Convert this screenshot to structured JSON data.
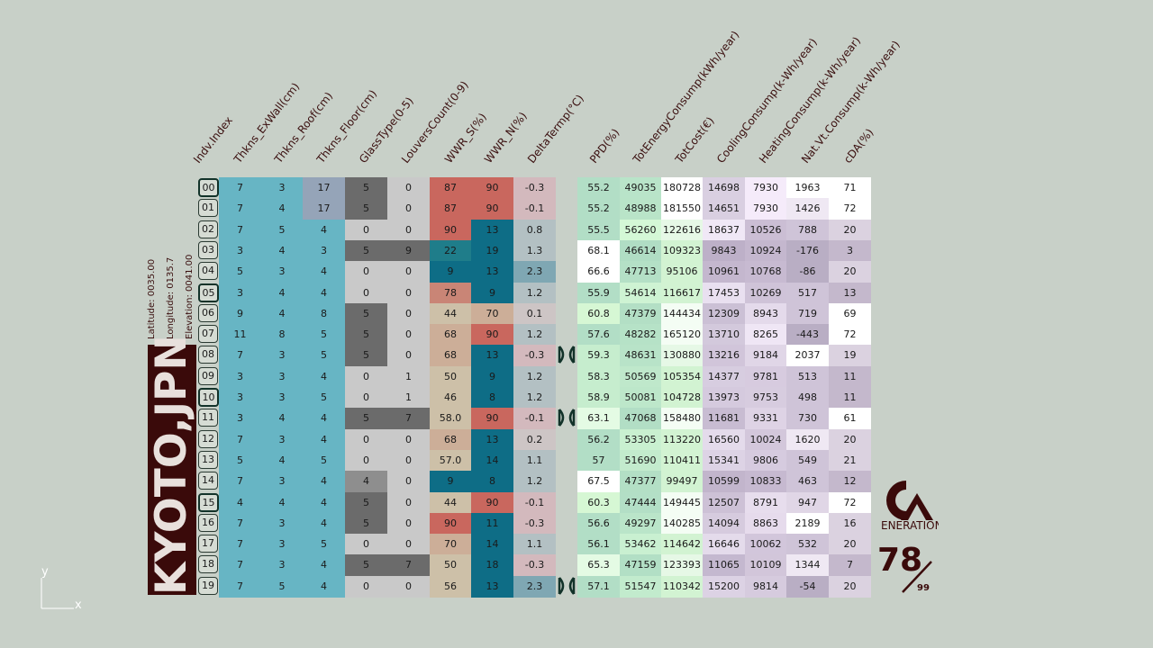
{
  "headers": [
    "Indv.Index",
    "Thkns_ExWall(cm)",
    "Thkns_Roof(cm)",
    "Thkns_Floor(cm)",
    "GlassType(0-5)",
    "LouversCount(0-9)",
    "WWR_S(%)",
    "WWR_N(%)",
    "DeltaTermp(°C)",
    "PPD(%)",
    "TotEnergyConsump(kWh/year)",
    "TotCost(€)",
    "CoolingConsump(k-Wh/year)",
    "HeatingConsump(k-Wh/year)",
    "Nat.Vt.Consump(k-Wh/year)",
    "cDA(%)"
  ],
  "rows": [
    [
      "00",
      "7",
      "3",
      "17",
      "5",
      "0",
      "87",
      "90",
      "-0.3",
      "55.2",
      "49035",
      "180728",
      "14698",
      "7930",
      "1963",
      "71"
    ],
    [
      "01",
      "7",
      "4",
      "17",
      "5",
      "0",
      "87",
      "90",
      "-0.1",
      "55.2",
      "48988",
      "181550",
      "14651",
      "7930",
      "1426",
      "72"
    ],
    [
      "02",
      "7",
      "5",
      "4",
      "0",
      "0",
      "90",
      "13",
      "0.8",
      "55.5",
      "56260",
      "122616",
      "18637",
      "10526",
      "788",
      "20"
    ],
    [
      "03",
      "3",
      "4",
      "3",
      "5",
      "9",
      "22",
      "19",
      "1.3",
      "68.1",
      "46614",
      "109323",
      "9843",
      "10924",
      "-176",
      "3"
    ],
    [
      "04",
      "5",
      "3",
      "4",
      "0",
      "0",
      "9",
      "13",
      "2.3",
      "66.6",
      "47713",
      "95106",
      "10961",
      "10768",
      "-86",
      "20"
    ],
    [
      "05",
      "3",
      "4",
      "4",
      "0",
      "0",
      "78",
      "9",
      "1.2",
      "55.9",
      "54614",
      "116617",
      "17453",
      "10269",
      "517",
      "13"
    ],
    [
      "06",
      "9",
      "4",
      "8",
      "5",
      "0",
      "44",
      "70",
      "0.1",
      "60.8",
      "47379",
      "144434",
      "12309",
      "8943",
      "719",
      "69"
    ],
    [
      "07",
      "11",
      "8",
      "5",
      "5",
      "0",
      "68",
      "90",
      "1.2",
      "57.6",
      "48282",
      "165120",
      "13710",
      "8265",
      "-443",
      "72"
    ],
    [
      "08",
      "7",
      "3",
      "5",
      "5",
      "0",
      "68",
      "13",
      "-0.3",
      "59.3",
      "48631",
      "130880",
      "13216",
      "9184",
      "2037",
      "19"
    ],
    [
      "09",
      "3",
      "3",
      "4",
      "0",
      "1",
      "50",
      "9",
      "1.2",
      "58.3",
      "50569",
      "105354",
      "14377",
      "9781",
      "513",
      "11"
    ],
    [
      "10",
      "3",
      "3",
      "5",
      "0",
      "1",
      "46",
      "8",
      "1.2",
      "58.9",
      "50081",
      "104728",
      "13973",
      "9753",
      "498",
      "11"
    ],
    [
      "11",
      "3",
      "4",
      "4",
      "5",
      "7",
      "58.0",
      "90",
      "-0.1",
      "63.1",
      "47068",
      "158480",
      "11681",
      "9331",
      "730",
      "61"
    ],
    [
      "12",
      "7",
      "3",
      "4",
      "0",
      "0",
      "68",
      "13",
      "0.2",
      "56.2",
      "53305",
      "113220",
      "16560",
      "10024",
      "1620",
      "20"
    ],
    [
      "13",
      "5",
      "4",
      "5",
      "0",
      "0",
      "57.0",
      "14",
      "1.1",
      "57",
      "51690",
      "110411",
      "15341",
      "9806",
      "549",
      "21"
    ],
    [
      "14",
      "7",
      "3",
      "4",
      "4",
      "0",
      "9",
      "8",
      "1.2",
      "67.5",
      "47377",
      "99497",
      "10599",
      "10833",
      "463",
      "12"
    ],
    [
      "15",
      "4",
      "4",
      "4",
      "5",
      "0",
      "44",
      "90",
      "-0.1",
      "60.3",
      "47444",
      "149445",
      "12507",
      "8791",
      "947",
      "72"
    ],
    [
      "16",
      "7",
      "3",
      "4",
      "5",
      "0",
      "90",
      "11",
      "-0.3",
      "56.6",
      "49297",
      "140285",
      "14094",
      "8863",
      "2189",
      "16"
    ],
    [
      "17",
      "7",
      "3",
      "5",
      "0",
      "0",
      "70",
      "14",
      "1.1",
      "56.1",
      "53462",
      "114642",
      "16646",
      "10062",
      "532",
      "20"
    ],
    [
      "18",
      "7",
      "3",
      "4",
      "5",
      "7",
      "50",
      "18",
      "-0.3",
      "65.3",
      "47159",
      "123393",
      "11065",
      "10109",
      "1344",
      "7"
    ],
    [
      "19",
      "7",
      "5",
      "4",
      "0",
      "0",
      "56",
      "13",
      "2.3",
      "57.1",
      "51547",
      "110342",
      "15200",
      "9814",
      "-54",
      "20"
    ]
  ],
  "selected_rows": [
    "00",
    "05",
    "10",
    "15"
  ],
  "marked_rows": [
    "08",
    "11",
    "19"
  ],
  "location": {
    "city": "KYOTO,JPN",
    "latitude": "Latitude:  0035.00",
    "longitude": "Longitude: 0135.7",
    "elevation": "Elevation: 0041.00"
  },
  "generation": {
    "current": "78",
    "total": "99",
    "logo_text": "ENERATION"
  },
  "axes": {
    "y": "y",
    "x": "x"
  },
  "colors": {
    "bg": "#c8d0c8",
    "teal": "#67b5c4",
    "dark_red": "#3a0a0a"
  }
}
